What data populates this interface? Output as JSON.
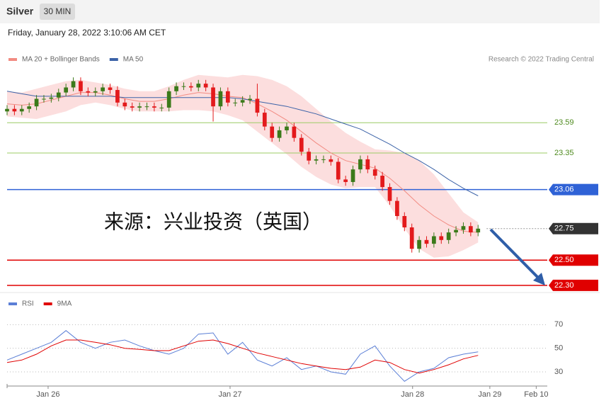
{
  "header": {
    "title": "Silver",
    "timeframe": "30 MIN",
    "date": "Friday, January 28, 2022 3:10:06 AM CET"
  },
  "chart_data": [
    {
      "type": "candlestick",
      "credit": "Research © 2022 Trading Central",
      "annotation": "来源：兴业投资（英国）",
      "xlim": [
        0,
        147
      ],
      "ylim": [
        22.26,
        24.03
      ],
      "up_color": "#3b7a1a",
      "down_color": "#e31a1c",
      "x": [
        0,
        2,
        4,
        6,
        8,
        10,
        12,
        14,
        16,
        18,
        20,
        22,
        24,
        26,
        28,
        30,
        32,
        34,
        36,
        38,
        40,
        42,
        44,
        46,
        48,
        50,
        52,
        54,
        56,
        58,
        60,
        62,
        64,
        66,
        68,
        70,
        72,
        74,
        76,
        78,
        80,
        82,
        84,
        86,
        88,
        90,
        92,
        94,
        96,
        98,
        100,
        102,
        104,
        106,
        108,
        110,
        112,
        114,
        116,
        118,
        120,
        122,
        124,
        126,
        128
      ],
      "open": [
        23.68,
        23.7,
        23.68,
        23.7,
        23.72,
        23.78,
        23.78,
        23.79,
        23.83,
        23.87,
        23.92,
        23.84,
        23.83,
        23.84,
        23.87,
        23.85,
        23.75,
        23.72,
        23.71,
        23.72,
        23.72,
        23.71,
        23.71,
        23.84,
        23.88,
        23.88,
        23.87,
        23.9,
        23.87,
        23.72,
        23.84,
        23.75,
        23.75,
        23.77,
        23.78,
        23.67,
        23.56,
        23.47,
        23.53,
        23.56,
        23.47,
        23.36,
        23.29,
        23.3,
        23.3,
        23.28,
        23.14,
        23.12,
        23.22,
        23.3,
        23.22,
        23.17,
        23.08,
        22.97,
        22.85,
        22.76,
        22.59,
        22.66,
        22.63,
        22.69,
        22.66,
        22.72,
        22.74,
        22.77,
        22.72
      ],
      "high": [
        23.73,
        23.73,
        23.73,
        23.75,
        23.81,
        23.81,
        23.82,
        23.86,
        23.9,
        23.95,
        23.95,
        23.87,
        23.87,
        23.9,
        23.9,
        23.88,
        23.78,
        23.75,
        23.75,
        23.75,
        23.75,
        23.74,
        23.87,
        23.91,
        23.91,
        23.91,
        23.93,
        23.93,
        23.9,
        23.87,
        23.87,
        23.78,
        23.8,
        23.81,
        23.9,
        23.7,
        23.59,
        23.56,
        23.59,
        23.59,
        23.5,
        23.39,
        23.33,
        23.33,
        23.33,
        23.31,
        23.17,
        23.25,
        23.33,
        23.33,
        23.25,
        23.2,
        23.11,
        23.0,
        22.88,
        22.79,
        22.69,
        22.69,
        22.72,
        22.72,
        22.75,
        22.77,
        22.8,
        22.8,
        22.78
      ],
      "low": [
        23.65,
        23.65,
        23.65,
        23.67,
        23.69,
        23.75,
        23.75,
        23.76,
        23.8,
        23.84,
        23.81,
        23.8,
        23.8,
        23.81,
        23.82,
        23.72,
        23.69,
        23.68,
        23.68,
        23.69,
        23.68,
        23.68,
        23.68,
        23.81,
        23.85,
        23.84,
        23.84,
        23.84,
        23.6,
        23.69,
        23.72,
        23.72,
        23.72,
        23.74,
        23.64,
        23.53,
        23.44,
        23.44,
        23.5,
        23.44,
        23.33,
        23.26,
        23.26,
        23.27,
        23.25,
        23.11,
        23.09,
        23.09,
        23.19,
        23.19,
        23.14,
        23.05,
        22.94,
        22.82,
        22.73,
        22.56,
        22.56,
        22.6,
        22.6,
        22.63,
        22.63,
        22.69,
        22.71,
        22.69,
        22.69
      ],
      "close": [
        23.7,
        23.68,
        23.7,
        23.72,
        23.78,
        23.78,
        23.79,
        23.83,
        23.87,
        23.92,
        23.84,
        23.83,
        23.84,
        23.87,
        23.85,
        23.75,
        23.72,
        23.71,
        23.72,
        23.72,
        23.71,
        23.71,
        23.84,
        23.88,
        23.88,
        23.87,
        23.9,
        23.87,
        23.72,
        23.84,
        23.75,
        23.75,
        23.77,
        23.78,
        23.67,
        23.56,
        23.47,
        23.53,
        23.56,
        23.47,
        23.36,
        23.29,
        23.3,
        23.3,
        23.28,
        23.14,
        23.12,
        23.22,
        23.3,
        23.22,
        23.17,
        23.08,
        22.97,
        22.85,
        22.76,
        22.59,
        22.66,
        22.63,
        22.69,
        22.66,
        22.72,
        22.74,
        22.77,
        22.72,
        22.75
      ],
      "series": [
        {
          "name": "MA 20 + Bollinger Bands",
          "color": "#f28b82",
          "band_color": "#fcdede",
          "x": [
            0,
            4,
            8,
            12,
            16,
            20,
            24,
            28,
            32,
            36,
            40,
            44,
            48,
            52,
            56,
            60,
            64,
            68,
            72,
            76,
            80,
            84,
            88,
            92,
            96,
            100,
            104,
            108,
            112,
            116,
            120,
            124,
            128
          ],
          "values": [
            23.74,
            23.73,
            23.74,
            23.77,
            23.8,
            23.83,
            23.83,
            23.81,
            23.78,
            23.76,
            23.76,
            23.78,
            23.81,
            23.83,
            23.82,
            23.8,
            23.79,
            23.74,
            23.68,
            23.61,
            23.52,
            23.43,
            23.35,
            23.29,
            23.26,
            23.23,
            23.15,
            23.05,
            22.94,
            22.85,
            22.78,
            22.73,
            22.72
          ],
          "upper": [
            23.84,
            23.83,
            23.86,
            23.89,
            23.92,
            23.93,
            23.91,
            23.89,
            23.86,
            23.84,
            23.84,
            23.88,
            23.93,
            23.97,
            23.96,
            23.95,
            23.97,
            23.96,
            23.93,
            23.88,
            23.8,
            23.7,
            23.6,
            23.51,
            23.44,
            23.38,
            23.37,
            23.35,
            23.29,
            23.18,
            23.03,
            22.88,
            22.8
          ],
          "lower": [
            23.64,
            23.63,
            23.62,
            23.65,
            23.68,
            23.73,
            23.75,
            23.73,
            23.7,
            23.68,
            23.68,
            23.68,
            23.69,
            23.69,
            23.68,
            23.65,
            23.61,
            23.52,
            23.43,
            23.34,
            23.24,
            23.16,
            23.1,
            23.07,
            23.08,
            23.08,
            22.93,
            22.75,
            22.59,
            22.52,
            22.53,
            22.58,
            22.64
          ]
        },
        {
          "name": "MA 50",
          "color": "#3c63a8",
          "x": [
            0,
            4,
            8,
            12,
            16,
            20,
            24,
            28,
            32,
            36,
            40,
            44,
            48,
            52,
            56,
            60,
            64,
            68,
            72,
            76,
            80,
            84,
            88,
            92,
            96,
            100,
            104,
            108,
            112,
            116,
            120,
            124,
            128
          ],
          "values": [
            23.84,
            23.82,
            23.8,
            23.8,
            23.8,
            23.8,
            23.8,
            23.8,
            23.79,
            23.79,
            23.79,
            23.79,
            23.79,
            23.79,
            23.79,
            23.79,
            23.78,
            23.76,
            23.74,
            23.72,
            23.69,
            23.66,
            23.62,
            23.58,
            23.54,
            23.48,
            23.42,
            23.35,
            23.29,
            23.22,
            23.14,
            23.07,
            23.01
          ]
        }
      ],
      "levels": [
        {
          "value": 23.59,
          "label": "23.59",
          "color": "#9ccc65",
          "style": "solid",
          "tag": false
        },
        {
          "value": 23.35,
          "label": "23.35",
          "color": "#9ccc65",
          "style": "solid",
          "tag": false
        },
        {
          "value": 23.06,
          "label": "23.06",
          "color": "#2f62d6",
          "style": "solid",
          "tag": true
        },
        {
          "value": 22.75,
          "label": "22.75",
          "color": "#333333",
          "style": "dotted",
          "tag": true
        },
        {
          "value": 22.5,
          "label": "22.50",
          "color": "#e00000",
          "style": "solid",
          "tag": true
        },
        {
          "value": 22.3,
          "label": "22.30",
          "color": "#e00000",
          "style": "solid",
          "tag": true
        }
      ]
    },
    {
      "type": "line",
      "xlim": [
        0,
        147
      ],
      "ylim": [
        18,
        81
      ],
      "yticks": [
        30,
        50,
        70
      ],
      "xticks": [
        {
          "value": 11.15,
          "label": "Jan 26"
        },
        {
          "value": 60.6,
          "label": "Jan 27"
        },
        {
          "value": 110.2,
          "label": "Jan 28"
        },
        {
          "value": 131.2,
          "label": "Jan 29"
        },
        {
          "value": 143.8,
          "label": "Feb 10"
        }
      ],
      "series": [
        {
          "name": "RSI",
          "color": "#5b7fd6",
          "x": [
            0,
            4,
            8,
            12,
            16,
            20,
            24,
            28,
            32,
            36,
            40,
            44,
            48,
            52,
            56,
            60,
            64,
            68,
            72,
            76,
            80,
            84,
            88,
            92,
            96,
            100,
            104,
            108,
            112,
            116,
            120,
            124,
            128
          ],
          "values": [
            40,
            45,
            50,
            55,
            65,
            55,
            50,
            55,
            57,
            52,
            48,
            45,
            50,
            62,
            63,
            45,
            55,
            40,
            35,
            42,
            32,
            35,
            30,
            28,
            45,
            52,
            35,
            22,
            30,
            33,
            42,
            45,
            47
          ]
        },
        {
          "name": "9MA",
          "color": "#e00000",
          "x": [
            0,
            4,
            8,
            12,
            16,
            20,
            24,
            28,
            32,
            36,
            40,
            44,
            48,
            52,
            56,
            60,
            64,
            68,
            72,
            76,
            80,
            84,
            88,
            92,
            96,
            100,
            104,
            108,
            112,
            116,
            120,
            124,
            128
          ],
          "values": [
            38,
            40,
            45,
            52,
            57,
            57,
            55,
            53,
            50,
            49,
            48,
            48,
            52,
            56,
            57,
            54,
            50,
            46,
            43,
            40,
            37,
            35,
            33,
            32,
            34,
            40,
            38,
            32,
            29,
            32,
            36,
            41,
            44
          ]
        }
      ]
    }
  ]
}
